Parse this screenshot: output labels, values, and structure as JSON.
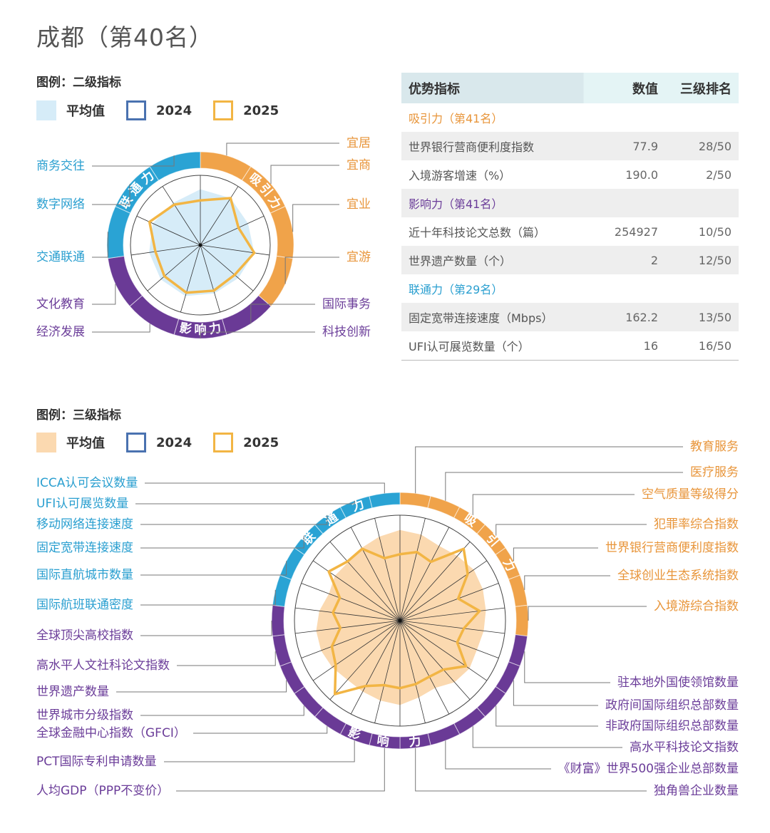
{
  "title": "成都（第40名）",
  "legend_level2": {
    "title": "图例：二级指标",
    "avg": "平均值",
    "y2024": "2024",
    "y2025": "2025",
    "avg_color": "#d6ecf8"
  },
  "legend_level3": {
    "title": "图例：三级指标",
    "avg": "平均值",
    "y2024": "2024",
    "y2025": "2025",
    "avg_color": "#fbd9b0"
  },
  "colors": {
    "attraction": "#f0a34a",
    "influence": "#6a3a96",
    "connectivity": "#2aa3d4",
    "y2024": "#4a72b0",
    "y2025": "#f2b544"
  },
  "table": {
    "headers": [
      "优势指标",
      "数值",
      "三级排名"
    ],
    "rows": [
      {
        "type": "category",
        "label": "吸引力（第41名）",
        "color": "#e8953a"
      },
      {
        "type": "data",
        "label": "世界银行营商便利度指数",
        "value": "77.9",
        "rank": "28/50"
      },
      {
        "type": "data",
        "label": "入境游客增速（%）",
        "value": "190.0",
        "rank": "2/50"
      },
      {
        "type": "category",
        "label": "影响力（第41名）",
        "color": "#6b3d99"
      },
      {
        "type": "data",
        "label": "近十年科技论文总数（篇）",
        "value": "254927",
        "rank": "10/50"
      },
      {
        "type": "data",
        "label": "世界遗产数量（个）",
        "value": "2",
        "rank": "12/50"
      },
      {
        "type": "category",
        "label": "联通力（第29名）",
        "color": "#2a9fd0"
      },
      {
        "type": "data",
        "label": "固定宽带连接速度（Mbps）",
        "value": "162.2",
        "rank": "13/50"
      },
      {
        "type": "data",
        "label": "UFI认可展览数量（个）",
        "value": "16",
        "rank": "16/50"
      }
    ]
  },
  "chart_data": [
    {
      "type": "radar",
      "rlim": [
        0,
        1
      ],
      "groups": [
        {
          "name": "吸引力",
          "count": 4
        },
        {
          "name": "影响力",
          "count": 4
        },
        {
          "name": "联通力",
          "count": 3
        }
      ],
      "categories": [
        "宜居",
        "宜商",
        "宜业",
        "宜游",
        "国际事务",
        "科技创新",
        "经济发展",
        "文化教育",
        "交通联通",
        "数字网络",
        "商务交往"
      ],
      "series": [
        {
          "name": "平均值",
          "values": [
            0.8,
            0.8,
            0.75,
            0.78,
            0.72,
            0.72,
            0.76,
            0.75,
            0.74,
            0.75,
            0.72
          ]
        },
        {
          "name": "2025",
          "values": [
            0.64,
            0.8,
            0.6,
            0.78,
            0.65,
            0.68,
            0.71,
            0.68,
            0.65,
            0.8,
            0.69
          ]
        }
      ]
    },
    {
      "type": "radar",
      "rlim": [
        0,
        1
      ],
      "groups": [
        {
          "name": "吸引力",
          "count": 7
        },
        {
          "name": "影响力",
          "count": 13
        },
        {
          "name": "联通力",
          "count": 6
        }
      ],
      "categories": [
        "教育服务",
        "医疗服务",
        "空气质量等级得分",
        "犯罪率综合指数",
        "世界银行营商便利度指数",
        "全球创业生态系统指数",
        "入境游综合指数",
        "驻本地外国使领馆数量",
        "政府间国际组织总部数量",
        "非政府国际组织总部数量",
        "高水平科技论文指数",
        "《财富》世界500强企业总部数量",
        "独角兽企业数量",
        "人均GDP（PPP不变价）",
        "PCT国际专利申请数量",
        "全球金融中心指数（GFCI）",
        "世界城市分级指数",
        "世界遗产数量",
        "高水平人文社科论文指数",
        "全球顶尖高校指数",
        "国际航班联通密度",
        "国际直航城市数量",
        "固定宽带连接速度",
        "移动网络连接速度",
        "UFI认可展览数量",
        "ICCA认可会议数量"
      ],
      "series": [
        {
          "name": "平均值",
          "values": [
            0.86,
            0.84,
            0.8,
            0.82,
            0.85,
            0.84,
            0.82,
            0.8,
            0.78,
            0.8,
            0.78,
            0.72,
            0.75,
            0.8,
            0.78,
            0.76,
            0.75,
            0.78,
            0.8,
            0.8,
            0.77,
            0.72,
            0.75,
            0.74,
            0.78,
            0.82
          ]
        },
        {
          "name": "2025",
          "values": [
            0.63,
            0.67,
            0.63,
            0.91,
            0.78,
            0.59,
            0.76,
            0.61,
            0.58,
            0.76,
            0.62,
            0.6,
            0.62,
            0.64,
            0.63,
            0.7,
            0.93,
            0.74,
            0.69,
            0.57,
            0.64,
            0.61,
            0.82,
            0.75,
            0.77,
            0.61
          ]
        }
      ]
    }
  ]
}
